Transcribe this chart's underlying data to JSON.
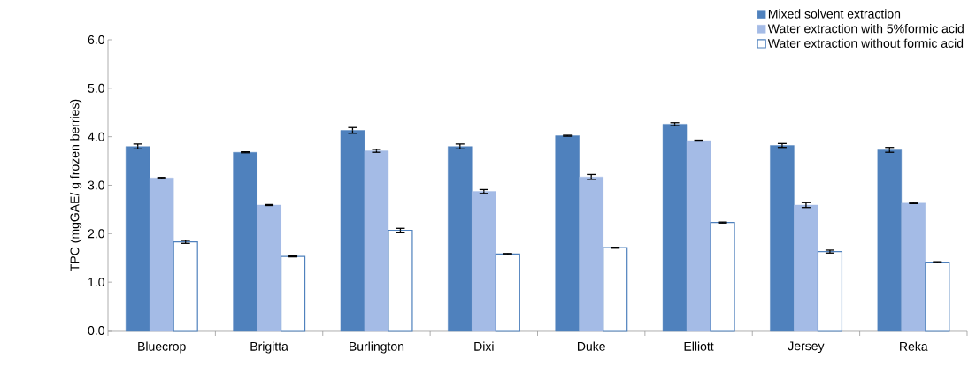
{
  "chart_data": {
    "type": "bar",
    "ylabel": "TPC (mgGAE/ g frozen berries)",
    "categories": [
      "Bluecrop",
      "Brigitta",
      "Burlington",
      "Dixi",
      "Duke",
      "Elliott",
      "Jersey",
      "Reka"
    ],
    "series": [
      {
        "name": "Mixed solvent extraction",
        "color": "#4f81bd",
        "values": [
          3.8,
          3.68,
          4.13,
          3.8,
          4.02,
          4.26,
          3.82,
          3.73
        ],
        "errors": [
          0.05,
          0.01,
          0.06,
          0.05,
          0.01,
          0.03,
          0.04,
          0.05
        ]
      },
      {
        "name": "Water extraction with 5%formic acid",
        "color": "#a4bbe6",
        "values": [
          3.15,
          2.59,
          3.71,
          2.87,
          3.17,
          3.92,
          2.59,
          2.63
        ],
        "errors": [
          0.01,
          0.01,
          0.03,
          0.04,
          0.05,
          0.01,
          0.05,
          0.01
        ]
      },
      {
        "name": "Water extraction without formic acid",
        "color": "#4f81bd",
        "values": [
          1.83,
          1.53,
          2.07,
          1.58,
          1.71,
          2.23,
          1.63,
          1.41
        ],
        "errors": [
          0.03,
          0.01,
          0.04,
          0.01,
          0.01,
          0.01,
          0.03,
          0.01
        ]
      }
    ],
    "ylim": [
      0,
      6
    ],
    "yticks": [
      {
        "value": 0,
        "label": "0.0"
      },
      {
        "value": 1,
        "label": "1.0"
      },
      {
        "value": 2,
        "label": "2.0"
      },
      {
        "value": 3,
        "label": "3.0"
      },
      {
        "value": 4,
        "label": "4.0"
      },
      {
        "value": 5,
        "label": "5.0"
      },
      {
        "value": 6,
        "label": "6.0"
      }
    ],
    "legend": "top right",
    "grid": false
  }
}
